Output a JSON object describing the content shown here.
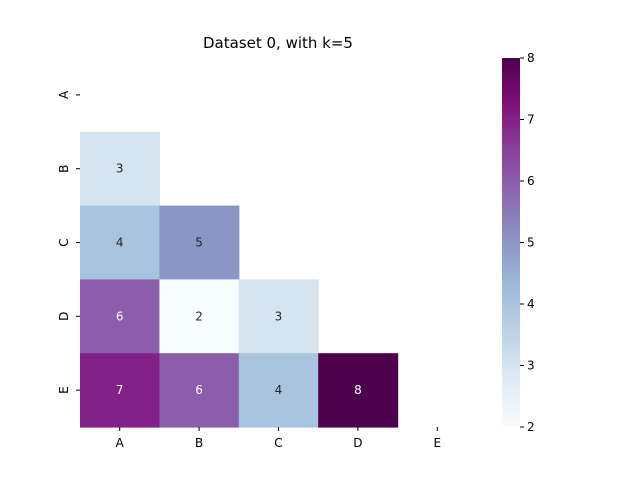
{
  "chart_data": {
    "type": "heatmap",
    "title": "Dataset 0, with k=5",
    "xlabel": "",
    "ylabel": "",
    "x_categories": [
      "A",
      "B",
      "C",
      "D",
      "E"
    ],
    "y_categories": [
      "A",
      "B",
      "C",
      "D",
      "E"
    ],
    "matrix": [
      [
        null,
        null,
        null,
        null,
        null
      ],
      [
        3,
        null,
        null,
        null,
        null
      ],
      [
        4,
        5,
        null,
        null,
        null
      ],
      [
        6,
        2,
        3,
        null,
        null
      ],
      [
        7,
        6,
        4,
        8,
        null
      ]
    ],
    "mask": "upper-triangle-including-diagonal",
    "annotate": true,
    "colormap": "BuPu",
    "colorbar": {
      "vmin": 2,
      "vmax": 8,
      "ticks": [
        2,
        3,
        4,
        5,
        6,
        7,
        8
      ]
    },
    "colors": {
      "stops": [
        "#f7fcfd",
        "#e0ecf4",
        "#bfd3e6",
        "#9ebcda",
        "#8c96c6",
        "#8c6bb1",
        "#88419d",
        "#810f7c",
        "#4d004b"
      ],
      "light_text": "#ffffff",
      "dark_text": "#262626"
    }
  }
}
